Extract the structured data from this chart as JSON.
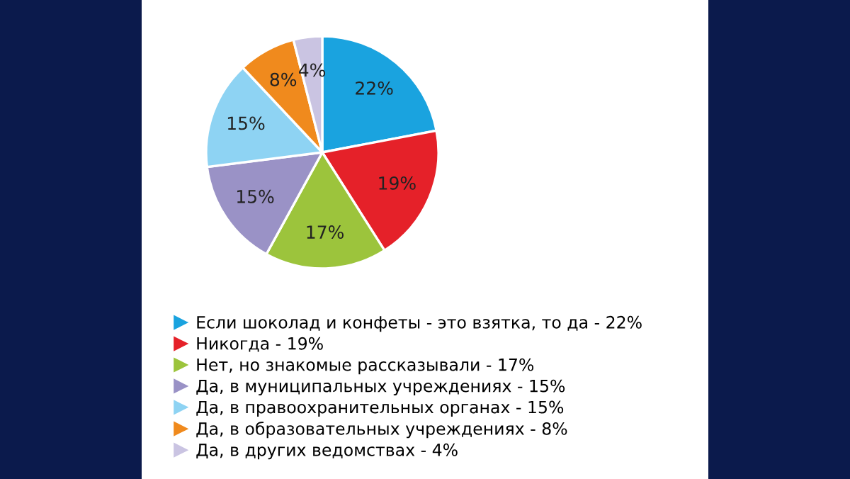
{
  "chart_data": {
    "type": "pie",
    "categories": [
      "Если шоколад и конфеты - это взятка, то да - 22%",
      "Никогда - 19%",
      "Нет, но знакомые рассказывали - 17%",
      "Да, в муниципальных учреждениях - 15%",
      "Да, в правоохранительных органах - 15%",
      "Да, в образовательных учреждениях - 8%",
      "Да, в других ведомствах - 4%"
    ],
    "values": [
      22,
      19,
      17,
      15,
      15,
      8,
      4
    ],
    "value_labels": [
      "22%",
      "19%",
      "17%",
      "15%",
      "15%",
      "8%",
      "4%"
    ],
    "colors": [
      "#1aa3df",
      "#e52129",
      "#9cc43c",
      "#9a92c6",
      "#8ed3f3",
      "#f08a1d",
      "#cac4e2"
    ],
    "legend": "bottom"
  }
}
